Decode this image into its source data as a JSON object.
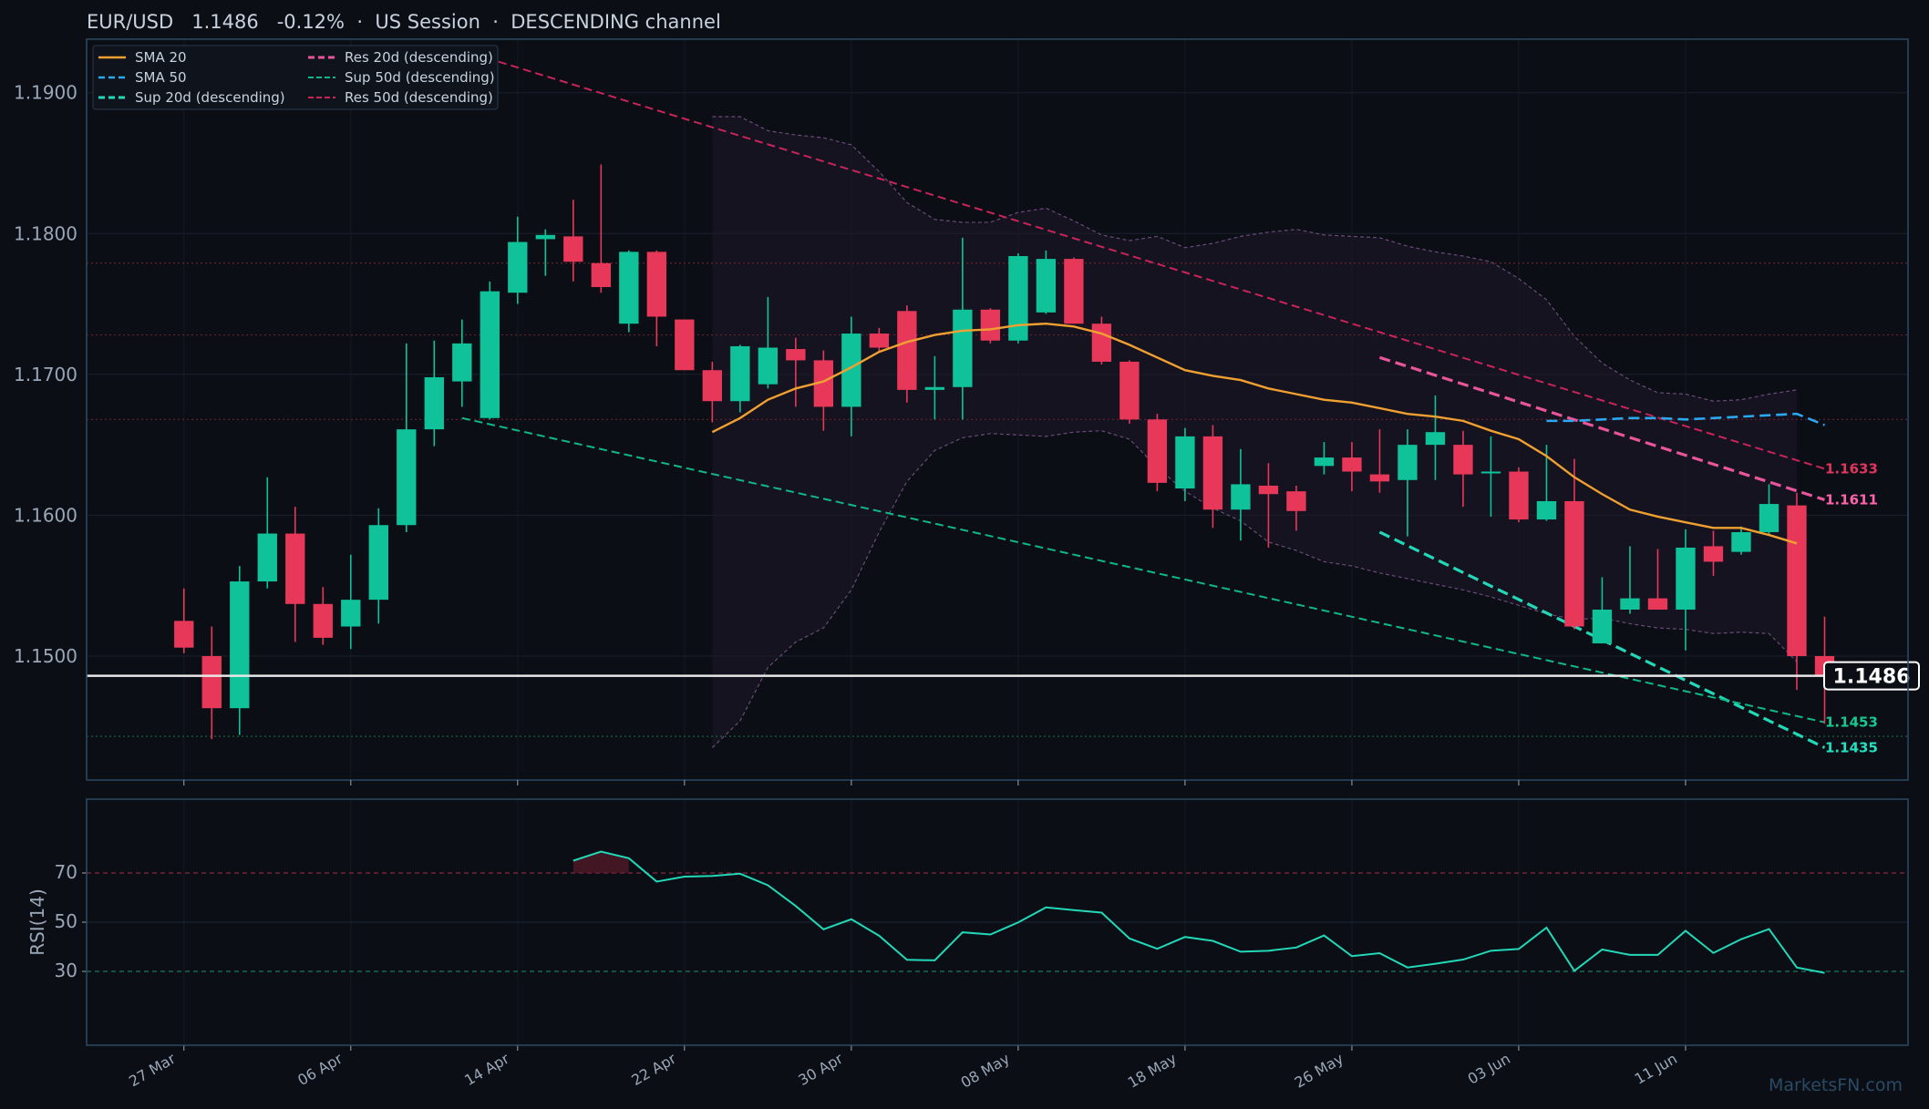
{
  "header": {
    "title": "EUR/USD   1.1486   -0.12%  ·  US Session  ·  DESCENDING channel"
  },
  "watermark": "MarketsFN.com",
  "colors": {
    "background": "#0b0e14",
    "panel_border": "#2a4a66",
    "bull": "#10c29a",
    "bear": "#e8385a",
    "sma20": "#f0a030",
    "sma50": "#2aa8f0",
    "res20": "#e8559a",
    "sup20": "#22d8b8",
    "res50": "#c8245a",
    "sup50": "#10b888",
    "rsi": "#22d8b8",
    "band": "#6a4a7a",
    "price_line": "#e8e8e8"
  },
  "chart_data": [
    {
      "type": "candlestick",
      "y_ticks": [
        "1.1500",
        "1.1600",
        "1.1700",
        "1.1800",
        "1.1900"
      ],
      "y_tick_values": [
        1.15,
        1.16,
        1.17,
        1.18,
        1.19
      ],
      "ylim": [
        1.1412,
        1.1938
      ],
      "x_labels": [
        "27 Mar",
        "06 Apr",
        "14 Apr",
        "22 Apr",
        "30 Apr",
        "08 May",
        "18 May",
        "26 May",
        "03 Jun",
        "11 Jun"
      ],
      "x_label_index": [
        0,
        6,
        12,
        18,
        24,
        30,
        36,
        42,
        48,
        54
      ],
      "xlim": [
        -3.5,
        62
      ],
      "candles": [
        {
          "o": 1.1525,
          "h": 1.1548,
          "l": 1.1502,
          "c": 1.1506
        },
        {
          "o": 1.15,
          "h": 1.1521,
          "l": 1.1441,
          "c": 1.1463
        },
        {
          "o": 1.1463,
          "h": 1.1564,
          "l": 1.1444,
          "c": 1.1553
        },
        {
          "o": 1.1553,
          "h": 1.1627,
          "l": 1.1548,
          "c": 1.1587
        },
        {
          "o": 1.1587,
          "h": 1.1606,
          "l": 1.151,
          "c": 1.1537
        },
        {
          "o": 1.1537,
          "h": 1.1549,
          "l": 1.1508,
          "c": 1.1513
        },
        {
          "o": 1.1521,
          "h": 1.1572,
          "l": 1.1505,
          "c": 1.154
        },
        {
          "o": 1.154,
          "h": 1.1605,
          "l": 1.1523,
          "c": 1.1593
        },
        {
          "o": 1.1593,
          "h": 1.1722,
          "l": 1.1588,
          "c": 1.1661
        },
        {
          "o": 1.1661,
          "h": 1.1724,
          "l": 1.1649,
          "c": 1.1698
        },
        {
          "o": 1.1695,
          "h": 1.1739,
          "l": 1.1677,
          "c": 1.1722
        },
        {
          "o": 1.1669,
          "h": 1.1766,
          "l": 1.1668,
          "c": 1.1759
        },
        {
          "o": 1.1758,
          "h": 1.1812,
          "l": 1.175,
          "c": 1.1794
        },
        {
          "o": 1.1796,
          "h": 1.1803,
          "l": 1.177,
          "c": 1.1799
        },
        {
          "o": 1.1798,
          "h": 1.1824,
          "l": 1.1766,
          "c": 1.178
        },
        {
          "o": 1.1779,
          "h": 1.1849,
          "l": 1.1758,
          "c": 1.1762
        },
        {
          "o": 1.1736,
          "h": 1.1788,
          "l": 1.173,
          "c": 1.1787
        },
        {
          "o": 1.1787,
          "h": 1.1788,
          "l": 1.172,
          "c": 1.1741
        },
        {
          "o": 1.1739,
          "h": 1.1739,
          "l": 1.1703,
          "c": 1.1703
        },
        {
          "o": 1.1703,
          "h": 1.1709,
          "l": 1.1666,
          "c": 1.1681
        },
        {
          "o": 1.1681,
          "h": 1.1721,
          "l": 1.1673,
          "c": 1.172
        },
        {
          "o": 1.1693,
          "h": 1.1755,
          "l": 1.169,
          "c": 1.1719
        },
        {
          "o": 1.1718,
          "h": 1.1726,
          "l": 1.1677,
          "c": 1.171
        },
        {
          "o": 1.171,
          "h": 1.1717,
          "l": 1.166,
          "c": 1.1677
        },
        {
          "o": 1.1677,
          "h": 1.1741,
          "l": 1.1656,
          "c": 1.1729
        },
        {
          "o": 1.1729,
          "h": 1.1733,
          "l": 1.1716,
          "c": 1.1719
        },
        {
          "o": 1.1745,
          "h": 1.1749,
          "l": 1.168,
          "c": 1.1689
        },
        {
          "o": 1.1689,
          "h": 1.1713,
          "l": 1.1668,
          "c": 1.1691
        },
        {
          "o": 1.1691,
          "h": 1.1797,
          "l": 1.1668,
          "c": 1.1746
        },
        {
          "o": 1.1746,
          "h": 1.1747,
          "l": 1.1722,
          "c": 1.1724
        },
        {
          "o": 1.1724,
          "h": 1.1786,
          "l": 1.1722,
          "c": 1.1784
        },
        {
          "o": 1.1744,
          "h": 1.1788,
          "l": 1.1743,
          "c": 1.1782
        },
        {
          "o": 1.1782,
          "h": 1.1783,
          "l": 1.1736,
          "c": 1.1736
        },
        {
          "o": 1.1736,
          "h": 1.1741,
          "l": 1.1707,
          "c": 1.1709
        },
        {
          "o": 1.1709,
          "h": 1.171,
          "l": 1.1665,
          "c": 1.1668
        },
        {
          "o": 1.1668,
          "h": 1.1672,
          "l": 1.1617,
          "c": 1.1623
        },
        {
          "o": 1.1619,
          "h": 1.1662,
          "l": 1.161,
          "c": 1.1656
        },
        {
          "o": 1.1656,
          "h": 1.1664,
          "l": 1.1591,
          "c": 1.1604
        },
        {
          "o": 1.1604,
          "h": 1.1647,
          "l": 1.1582,
          "c": 1.1622
        },
        {
          "o": 1.1621,
          "h": 1.1637,
          "l": 1.1577,
          "c": 1.1615
        },
        {
          "o": 1.1617,
          "h": 1.1621,
          "l": 1.1589,
          "c": 1.1603
        },
        {
          "o": 1.1635,
          "h": 1.1652,
          "l": 1.1629,
          "c": 1.1641
        },
        {
          "o": 1.1641,
          "h": 1.1652,
          "l": 1.1617,
          "c": 1.1631
        },
        {
          "o": 1.1629,
          "h": 1.1661,
          "l": 1.1616,
          "c": 1.1624
        },
        {
          "o": 1.1625,
          "h": 1.1661,
          "l": 1.1585,
          "c": 1.165
        },
        {
          "o": 1.165,
          "h": 1.1685,
          "l": 1.1625,
          "c": 1.1659
        },
        {
          "o": 1.165,
          "h": 1.166,
          "l": 1.1606,
          "c": 1.1629
        },
        {
          "o": 1.163,
          "h": 1.1656,
          "l": 1.1599,
          "c": 1.1631
        },
        {
          "o": 1.1631,
          "h": 1.1634,
          "l": 1.1595,
          "c": 1.1597
        },
        {
          "o": 1.1597,
          "h": 1.165,
          "l": 1.1596,
          "c": 1.161
        },
        {
          "o": 1.161,
          "h": 1.164,
          "l": 1.1519,
          "c": 1.1521
        },
        {
          "o": 1.1509,
          "h": 1.1556,
          "l": 1.1509,
          "c": 1.1533
        },
        {
          "o": 1.1533,
          "h": 1.1578,
          "l": 1.153,
          "c": 1.1541
        },
        {
          "o": 1.1541,
          "h": 1.1576,
          "l": 1.1534,
          "c": 1.1533
        },
        {
          "o": 1.1533,
          "h": 1.159,
          "l": 1.1504,
          "c": 1.1577
        },
        {
          "o": 1.1578,
          "h": 1.1589,
          "l": 1.1557,
          "c": 1.1567
        },
        {
          "o": 1.1574,
          "h": 1.1592,
          "l": 1.1572,
          "c": 1.1588
        },
        {
          "o": 1.1588,
          "h": 1.1622,
          "l": 1.1586,
          "c": 1.1608
        },
        {
          "o": 1.1607,
          "h": 1.1616,
          "l": 1.1476,
          "c": 1.15
        },
        {
          "o": 1.15,
          "h": 1.1528,
          "l": 1.1452,
          "c": 1.1486
        }
      ],
      "sma20": {
        "start_index": 19,
        "values": [
          1.1659,
          1.1669,
          1.1682,
          1.169,
          1.1695,
          1.1705,
          1.1716,
          1.1723,
          1.1728,
          1.1731,
          1.1732,
          1.1735,
          1.1736,
          1.1734,
          1.1729,
          1.1721,
          1.1712,
          1.1703,
          1.1699,
          1.1696,
          1.169,
          1.1686,
          1.1682,
          1.168,
          1.1676,
          1.1672,
          1.167,
          1.1667,
          1.166,
          1.1654,
          1.1642,
          1.1627,
          1.1615,
          1.1604,
          1.1599,
          1.1595,
          1.1591,
          1.1591,
          1.1586,
          1.158
        ]
      },
      "sma50": {
        "start_index": 49,
        "values": [
          1.1667,
          1.1667,
          1.1668,
          1.1669,
          1.1669,
          1.1668,
          1.1669,
          1.167,
          1.1671,
          1.1672,
          1.1664
        ]
      },
      "bollinger": {
        "start_index": 19,
        "upper": [
          1.1883,
          1.1883,
          1.1873,
          1.187,
          1.1868,
          1.1863,
          1.1844,
          1.1822,
          1.181,
          1.1808,
          1.1808,
          1.1815,
          1.1818,
          1.1809,
          1.1799,
          1.1795,
          1.1798,
          1.179,
          1.1793,
          1.1798,
          1.1801,
          1.1803,
          1.1799,
          1.1798,
          1.1797,
          1.1791,
          1.1787,
          1.1784,
          1.178,
          1.1768,
          1.1753,
          1.1727,
          1.1708,
          1.1696,
          1.1687,
          1.1686,
          1.1681,
          1.1682,
          1.1686,
          1.1689
        ],
        "lower": [
          1.1435,
          1.1454,
          1.1492,
          1.151,
          1.152,
          1.1547,
          1.1588,
          1.1624,
          1.1646,
          1.1655,
          1.1658,
          1.1657,
          1.1656,
          1.1659,
          1.166,
          1.1654,
          1.1634,
          1.1617,
          1.1605,
          1.1596,
          1.1581,
          1.1575,
          1.1567,
          1.1564,
          1.1559,
          1.1555,
          1.1551,
          1.1547,
          1.1542,
          1.1536,
          1.153,
          1.1526,
          1.1527,
          1.1523,
          1.152,
          1.1519,
          1.1516,
          1.1517,
          1.1516,
          1.1496
        ]
      },
      "trendlines": [
        {
          "name": "Res 20d (descending)",
          "x": [
            43,
            59
          ],
          "y": [
            1.1712,
            1.1611
          ]
        },
        {
          "name": "Sup 20d (descending)",
          "x": [
            43,
            59
          ],
          "y": [
            1.1588,
            1.1435
          ]
        },
        {
          "name": "Res 50d (descending)",
          "x": [
            10,
            59
          ],
          "y": [
            1.193,
            1.1633
          ]
        },
        {
          "name": "Sup 50d (descending)",
          "x": [
            10,
            59
          ],
          "y": [
            1.1669,
            1.1453
          ]
        }
      ],
      "horizontal_levels": [
        1.1779,
        1.1728,
        1.1668,
        1.1443
      ],
      "level_labels": [
        {
          "text": "1.1633",
          "value": 1.1633,
          "color": "#e0355f"
        },
        {
          "text": "1.1611",
          "value": 1.1611,
          "color": "#ff64aa"
        },
        {
          "text": "1.1453",
          "value": 1.1453,
          "color": "#18c890"
        },
        {
          "text": "1.1435",
          "value": 1.1435,
          "color": "#22e0c0"
        }
      ],
      "last_price": {
        "value": 1.1486,
        "label": "1.1486"
      },
      "legend": [
        [
          "SMA 20",
          "Res 20d (descending)"
        ],
        [
          "SMA 50",
          "Sup 50d (descending)"
        ],
        [
          "Sup 20d (descending)",
          "Res 50d (descending)"
        ]
      ]
    },
    {
      "type": "line",
      "ylabel": "RSI(14)",
      "y_ticks": [
        "30",
        "50",
        "70"
      ],
      "y_tick_values": [
        30,
        50,
        70
      ],
      "ylim": [
        0,
        100
      ],
      "overbought": 70,
      "oversold": 30,
      "start_index": 14,
      "values": [
        75.0,
        78.7,
        76.0,
        66.5,
        68.5,
        68.8,
        69.7,
        65.0,
        56.6,
        47.1,
        51.2,
        44.5,
        34.7,
        34.5,
        45.9,
        45.0,
        49.9,
        56.0,
        54.9,
        53.9,
        43.4,
        39.2,
        44.0,
        42.4,
        38.0,
        38.4,
        39.7,
        44.6,
        36.2,
        37.4,
        31.6,
        33.1,
        34.8,
        38.4,
        39.1,
        47.8,
        30.2,
        38.9,
        36.7,
        36.7,
        46.5,
        37.5,
        43.1,
        47.2,
        31.6,
        29.4
      ]
    }
  ]
}
